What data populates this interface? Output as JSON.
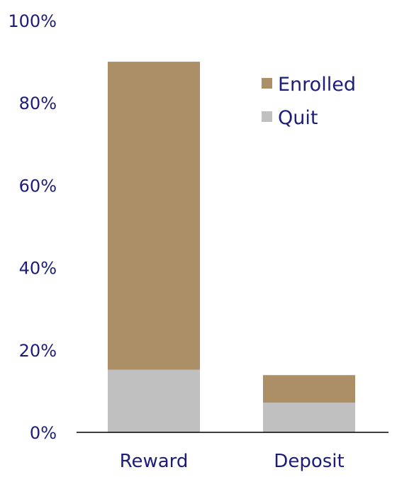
{
  "chart_data": {
    "type": "bar",
    "stacked": true,
    "categories": [
      "Reward",
      "Deposit"
    ],
    "series": [
      {
        "name": "Quit",
        "values": [
          15.2,
          7.2
        ],
        "color": "#c0c0c0"
      },
      {
        "name": "Enrolled",
        "values": [
          74.8,
          6.7
        ],
        "color": "#ac8f66"
      }
    ],
    "yticks": [
      "0%",
      "20%",
      "40%",
      "60%",
      "80%",
      "100%"
    ],
    "ylim": [
      0,
      100
    ],
    "y_unit": "%",
    "grid": false,
    "legend": {
      "placement": "top-right",
      "entries": [
        {
          "label": "Enrolled",
          "color": "#ac8f66"
        },
        {
          "label": "Quit",
          "color": "#c0c0c0"
        }
      ]
    },
    "title": "",
    "xlabel": "",
    "ylabel": ""
  }
}
